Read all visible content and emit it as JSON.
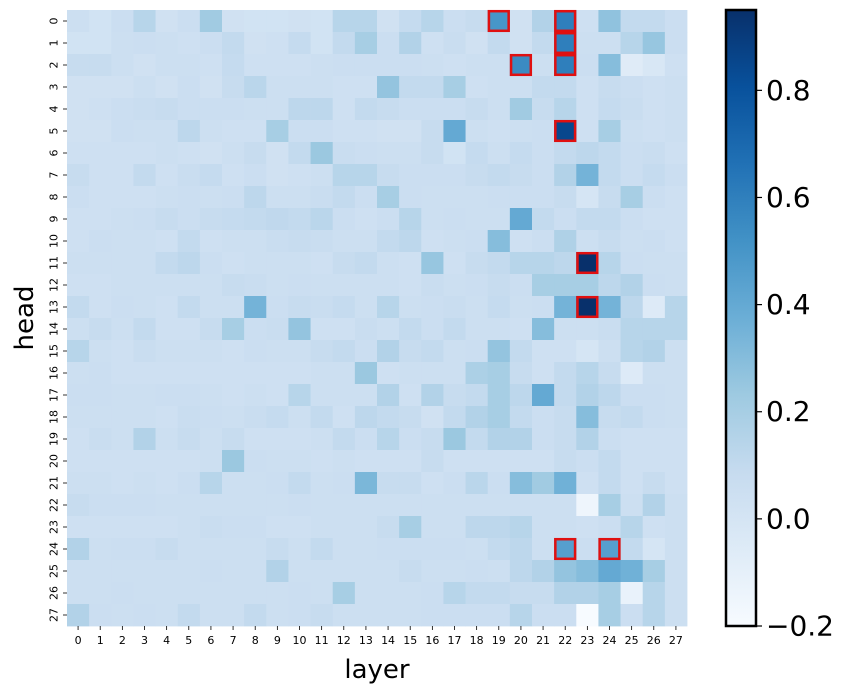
{
  "chart_data": {
    "type": "heatmap",
    "xlabel": "layer",
    "ylabel": "head",
    "x_categories": [
      "0",
      "1",
      "2",
      "3",
      "4",
      "5",
      "6",
      "7",
      "8",
      "9",
      "10",
      "11",
      "12",
      "13",
      "14",
      "15",
      "16",
      "17",
      "18",
      "19",
      "20",
      "21",
      "22",
      "23",
      "24",
      "25",
      "26",
      "27"
    ],
    "y_categories": [
      "0",
      "1",
      "2",
      "3",
      "4",
      "5",
      "6",
      "7",
      "8",
      "9",
      "10",
      "11",
      "12",
      "13",
      "14",
      "15",
      "16",
      "17",
      "18",
      "19",
      "20",
      "21",
      "22",
      "23",
      "24",
      "25",
      "26",
      "27"
    ],
    "colorbar": {
      "vmin": -0.2,
      "vmax": 0.95,
      "ticks": [
        -0.2,
        0.0,
        0.2,
        0.4,
        0.6,
        0.8
      ],
      "tick_labels": [
        "−0.2",
        "0.0",
        "0.2",
        "0.4",
        "0.6",
        "0.8"
      ],
      "colormap": "Blues"
    },
    "values": [
      [
        0.05,
        0.02,
        0.06,
        0.14,
        0.03,
        0.06,
        0.22,
        0.03,
        0.02,
        0.02,
        0.03,
        0.02,
        0.14,
        0.14,
        0.03,
        0.09,
        0.14,
        0.06,
        0.08,
        0.5,
        0.03,
        0.16,
        0.6,
        0.04,
        0.27,
        0.1,
        0.1,
        0.06
      ],
      [
        0.02,
        0.02,
        0.05,
        0.06,
        0.05,
        0.04,
        0.06,
        0.1,
        0.03,
        0.04,
        0.09,
        0.02,
        0.1,
        0.2,
        0.06,
        0.16,
        0.04,
        0.07,
        0.03,
        0.1,
        0.03,
        0.1,
        0.6,
        0.05,
        0.05,
        0.14,
        0.25,
        0.06
      ],
      [
        0.08,
        0.08,
        0.05,
        0.03,
        0.05,
        0.05,
        0.04,
        0.09,
        0.04,
        0.04,
        0.04,
        0.05,
        0.06,
        0.06,
        0.06,
        0.06,
        0.05,
        0.04,
        0.05,
        0.05,
        0.55,
        0.05,
        0.6,
        0.06,
        0.3,
        -0.06,
        -0.02,
        0.04
      ],
      [
        0.03,
        0.03,
        0.03,
        0.05,
        0.03,
        0.06,
        0.03,
        0.08,
        0.13,
        0.05,
        0.05,
        0.05,
        0.04,
        0.04,
        0.26,
        0.1,
        0.1,
        0.2,
        0.04,
        0.05,
        0.05,
        0.1,
        0.1,
        0.04,
        0.08,
        0.06,
        0.04,
        0.05
      ],
      [
        0.03,
        0.04,
        0.06,
        0.07,
        0.08,
        0.06,
        0.06,
        0.06,
        0.05,
        0.05,
        0.12,
        0.12,
        0.04,
        0.1,
        0.08,
        0.06,
        0.06,
        0.06,
        0.08,
        0.05,
        0.22,
        0.08,
        0.14,
        0.04,
        0.09,
        0.07,
        0.04,
        0.05
      ],
      [
        0.03,
        0.03,
        0.06,
        0.05,
        0.05,
        0.12,
        0.05,
        0.04,
        0.04,
        0.2,
        0.06,
        0.06,
        0.04,
        0.04,
        0.03,
        0.03,
        0.08,
        0.4,
        0.05,
        0.04,
        0.05,
        0.06,
        0.85,
        0.04,
        0.2,
        0.05,
        0.04,
        0.05
      ],
      [
        0.04,
        0.04,
        0.04,
        0.04,
        0.05,
        0.04,
        0.03,
        0.05,
        0.08,
        0.03,
        0.1,
        0.24,
        0.07,
        0.06,
        0.05,
        0.05,
        0.08,
        0.02,
        0.09,
        0.05,
        0.09,
        0.06,
        0.1,
        0.12,
        0.1,
        0.06,
        0.07,
        0.04
      ],
      [
        0.08,
        0.04,
        0.04,
        0.1,
        0.04,
        0.07,
        0.09,
        0.04,
        0.06,
        0.03,
        0.04,
        0.05,
        0.14,
        0.14,
        0.08,
        0.06,
        0.06,
        0.06,
        0.08,
        0.1,
        0.08,
        0.06,
        0.16,
        0.35,
        0.1,
        0.06,
        0.09,
        0.06
      ],
      [
        0.06,
        0.04,
        0.04,
        0.04,
        0.05,
        0.06,
        0.05,
        0.06,
        0.12,
        0.05,
        0.05,
        0.07,
        0.1,
        0.06,
        0.2,
        0.06,
        0.05,
        0.05,
        0.05,
        0.06,
        0.06,
        0.06,
        0.08,
        0.0,
        0.08,
        0.2,
        0.06,
        0.04
      ],
      [
        0.04,
        0.04,
        0.05,
        0.06,
        0.08,
        0.06,
        0.08,
        0.09,
        0.1,
        0.11,
        0.1,
        0.13,
        0.06,
        0.04,
        0.06,
        0.14,
        0.05,
        0.06,
        0.05,
        0.05,
        0.4,
        0.1,
        0.06,
        0.1,
        0.1,
        0.06,
        0.04,
        0.04
      ],
      [
        0.04,
        0.06,
        0.05,
        0.05,
        0.04,
        0.1,
        0.04,
        0.05,
        0.05,
        0.07,
        0.08,
        0.07,
        0.05,
        0.05,
        0.1,
        0.12,
        0.04,
        0.05,
        0.06,
        0.3,
        0.04,
        0.06,
        0.17,
        0.05,
        0.08,
        0.05,
        0.06,
        0.04
      ],
      [
        0.05,
        0.05,
        0.05,
        0.05,
        0.1,
        0.12,
        0.06,
        0.04,
        0.05,
        0.05,
        0.05,
        0.04,
        0.08,
        0.1,
        0.05,
        0.04,
        0.25,
        0.04,
        0.08,
        0.1,
        0.14,
        0.14,
        0.12,
        0.95,
        0.14,
        0.06,
        0.05,
        0.05
      ],
      [
        0.04,
        0.04,
        0.05,
        0.05,
        0.05,
        0.05,
        0.05,
        0.08,
        0.07,
        0.05,
        0.06,
        0.05,
        0.05,
        0.05,
        0.05,
        0.04,
        0.07,
        0.05,
        0.06,
        0.08,
        0.06,
        0.2,
        0.2,
        0.2,
        0.12,
        0.16,
        0.06,
        0.05
      ],
      [
        0.1,
        0.04,
        0.06,
        0.05,
        0.04,
        0.1,
        0.05,
        0.05,
        0.35,
        0.06,
        0.08,
        0.07,
        0.09,
        0.05,
        0.14,
        0.05,
        0.06,
        0.07,
        0.05,
        0.09,
        0.05,
        0.06,
        0.35,
        0.95,
        0.35,
        0.12,
        -0.05,
        0.14
      ],
      [
        0.05,
        0.08,
        0.05,
        0.1,
        0.04,
        0.04,
        0.08,
        0.2,
        0.06,
        0.07,
        0.26,
        0.04,
        0.04,
        0.07,
        0.05,
        0.1,
        0.06,
        0.1,
        0.05,
        0.05,
        0.04,
        0.3,
        0.05,
        0.05,
        0.07,
        0.14,
        0.14,
        0.14
      ],
      [
        0.14,
        0.05,
        0.04,
        0.07,
        0.05,
        0.05,
        0.05,
        0.04,
        0.06,
        0.05,
        0.05,
        0.08,
        0.1,
        0.06,
        0.16,
        0.08,
        0.1,
        0.05,
        0.06,
        0.26,
        0.1,
        0.04,
        0.04,
        0.0,
        0.05,
        0.14,
        0.16,
        0.05
      ],
      [
        0.05,
        0.06,
        0.04,
        0.04,
        0.04,
        0.04,
        0.04,
        0.04,
        0.04,
        0.04,
        0.04,
        0.05,
        0.05,
        0.24,
        0.04,
        0.05,
        0.05,
        0.05,
        0.18,
        0.2,
        0.08,
        0.04,
        0.1,
        0.14,
        0.08,
        -0.05,
        0.05,
        0.05
      ],
      [
        0.06,
        0.06,
        0.05,
        0.05,
        0.06,
        0.06,
        0.05,
        0.04,
        0.05,
        0.04,
        0.14,
        0.05,
        0.05,
        0.05,
        0.16,
        0.04,
        0.16,
        0.08,
        0.1,
        0.2,
        0.12,
        0.4,
        0.1,
        0.16,
        0.12,
        0.06,
        0.06,
        0.05
      ],
      [
        0.05,
        0.05,
        0.05,
        0.05,
        0.04,
        0.07,
        0.06,
        0.05,
        0.07,
        0.09,
        0.05,
        0.1,
        0.04,
        0.12,
        0.1,
        0.08,
        0.03,
        0.1,
        0.16,
        0.2,
        0.1,
        0.06,
        0.08,
        0.3,
        0.08,
        0.1,
        0.06,
        0.05
      ],
      [
        0.04,
        0.07,
        0.05,
        0.16,
        0.05,
        0.08,
        0.05,
        0.08,
        0.04,
        0.04,
        0.04,
        0.05,
        0.1,
        0.06,
        0.14,
        0.06,
        0.08,
        0.24,
        0.1,
        0.16,
        0.16,
        0.06,
        0.08,
        0.16,
        0.06,
        0.04,
        0.04,
        0.04
      ],
      [
        0.04,
        0.04,
        0.04,
        0.04,
        0.04,
        0.04,
        0.05,
        0.24,
        0.06,
        0.05,
        0.05,
        0.04,
        0.05,
        0.04,
        0.04,
        0.04,
        0.08,
        0.04,
        0.04,
        0.04,
        0.04,
        0.04,
        0.08,
        0.06,
        0.1,
        0.04,
        0.04,
        0.04
      ],
      [
        0.05,
        0.05,
        0.04,
        0.05,
        0.04,
        0.06,
        0.14,
        0.05,
        0.05,
        0.06,
        0.1,
        0.05,
        0.06,
        0.33,
        0.08,
        0.08,
        0.04,
        0.06,
        0.13,
        0.06,
        0.3,
        0.22,
        0.36,
        0.04,
        0.1,
        0.04,
        0.08,
        0.04
      ],
      [
        0.08,
        0.06,
        0.06,
        0.06,
        0.05,
        0.05,
        0.05,
        0.05,
        0.05,
        0.05,
        0.06,
        0.05,
        0.05,
        0.05,
        0.05,
        0.05,
        0.05,
        0.05,
        0.05,
        0.05,
        0.05,
        0.05,
        0.05,
        -0.15,
        0.2,
        0.05,
        0.16,
        0.05
      ],
      [
        0.04,
        0.04,
        0.04,
        0.04,
        0.04,
        0.05,
        0.07,
        0.06,
        0.06,
        0.04,
        0.04,
        0.05,
        0.05,
        0.05,
        0.08,
        0.2,
        0.05,
        0.05,
        0.12,
        0.12,
        0.14,
        0.05,
        0.05,
        0.04,
        0.06,
        0.14,
        0.04,
        0.05
      ],
      [
        0.16,
        0.05,
        0.06,
        0.06,
        0.08,
        0.05,
        0.05,
        0.05,
        0.05,
        0.08,
        0.05,
        0.1,
        0.05,
        0.05,
        0.06,
        0.06,
        0.06,
        0.06,
        0.05,
        0.1,
        0.12,
        0.05,
        0.45,
        0.06,
        0.45,
        0.1,
        0.0,
        0.05
      ],
      [
        0.05,
        0.05,
        0.05,
        0.05,
        0.05,
        0.05,
        0.06,
        0.05,
        0.05,
        0.16,
        0.05,
        0.05,
        0.05,
        0.05,
        0.05,
        0.08,
        0.05,
        0.05,
        0.06,
        0.05,
        0.12,
        0.16,
        0.26,
        0.3,
        0.4,
        0.36,
        0.2,
        0.05
      ],
      [
        0.05,
        0.05,
        0.06,
        0.05,
        0.05,
        0.05,
        0.05,
        0.05,
        0.05,
        0.05,
        0.06,
        0.05,
        0.2,
        0.05,
        0.05,
        0.05,
        0.06,
        0.14,
        0.1,
        0.1,
        0.08,
        0.08,
        0.16,
        0.16,
        0.2,
        -0.12,
        0.14,
        0.05
      ],
      [
        0.16,
        0.06,
        0.05,
        0.06,
        0.05,
        0.1,
        0.05,
        0.05,
        0.1,
        0.05,
        0.06,
        0.08,
        0.05,
        0.05,
        0.05,
        0.05,
        0.06,
        0.06,
        0.06,
        0.06,
        0.14,
        0.06,
        0.06,
        -0.2,
        0.2,
        0.06,
        0.14,
        0.05
      ]
    ],
    "highlighted_cells": [
      {
        "layer": 19,
        "head": 0
      },
      {
        "layer": 22,
        "head": 0
      },
      {
        "layer": 22,
        "head": 1
      },
      {
        "layer": 20,
        "head": 2
      },
      {
        "layer": 22,
        "head": 2
      },
      {
        "layer": 22,
        "head": 5
      },
      {
        "layer": 23,
        "head": 11
      },
      {
        "layer": 23,
        "head": 13
      },
      {
        "layer": 22,
        "head": 24
      },
      {
        "layer": 24,
        "head": 24
      }
    ],
    "highlight_color": "#e01010"
  }
}
